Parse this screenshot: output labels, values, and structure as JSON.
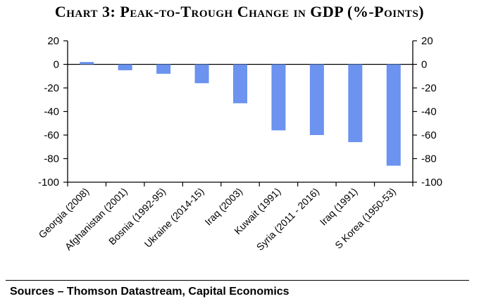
{
  "chart_data": {
    "type": "bar",
    "title": "Chart 3: Peak-to-Trough Change in GDP (%-Points)",
    "categories": [
      "Georgia (2008)",
      "Afghanistan (2001)",
      "Bosnia (1992-95)",
      "Ukraine (2014-15)",
      "Iraq (2003)",
      "Kuwait (1991)",
      "Syria (2011 - 2016)",
      "Iraq (1991)",
      "S Korea (1950-53)"
    ],
    "values": [
      2,
      -5,
      -8,
      -16,
      -33,
      -56,
      -60,
      -66,
      -86
    ],
    "ylim": [
      -100,
      20
    ],
    "yticks": [
      "20",
      "0",
      "-20",
      "-40",
      "-60",
      "-80",
      "-100"
    ],
    "xlabel": "",
    "ylabel": "",
    "bar_color": "#6b93ef",
    "secondary_axis": true
  },
  "source": "Sources – Thomson Datastream, Capital Economics"
}
